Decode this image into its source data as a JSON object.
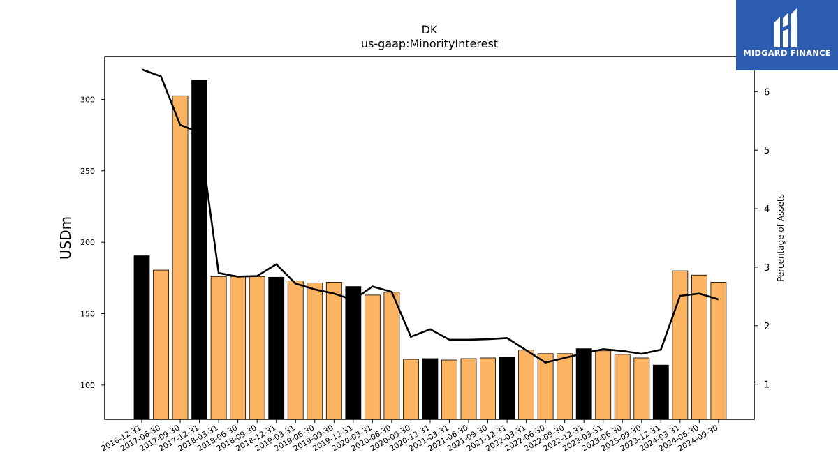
{
  "chart_data": {
    "type": "bar",
    "title": "DK",
    "subtitle": "us-gaap:MinorityInterest",
    "ylabel": "USDm",
    "y2label": "Percentage of Assets",
    "ylim": [
      76,
      330
    ],
    "y2lim": [
      0.4,
      6.6
    ],
    "yticks": [
      100,
      150,
      200,
      250,
      300
    ],
    "y2ticks": [
      1,
      2,
      3,
      4,
      5,
      6
    ],
    "grid": false,
    "categories": [
      "2016-12-31",
      "2017-06-30",
      "2017-09-30",
      "2017-12-31",
      "2018-03-31",
      "2018-06-30",
      "2018-09-30",
      "2018-12-31",
      "2019-03-31",
      "2019-06-30",
      "2019-09-30",
      "2019-12-31",
      "2020-03-31",
      "2020-06-30",
      "2020-09-30",
      "2020-12-31",
      "2021-03-31",
      "2021-06-30",
      "2021-09-30",
      "2021-12-31",
      "2022-03-31",
      "2022-06-30",
      "2022-09-30",
      "2022-12-31",
      "2023-03-31",
      "2023-06-30",
      "2023-09-30",
      "2023-12-31",
      "2024-03-31",
      "2024-06-30",
      "2024-09-30"
    ],
    "values": [
      190.5,
      180.5,
      302.5,
      313.5,
      176,
      176,
      176,
      175.5,
      173,
      171.5,
      172,
      169,
      163,
      165,
      118,
      118.5,
      117.5,
      118.5,
      119,
      119.5,
      124.5,
      122,
      122,
      125.5,
      124,
      121.5,
      119,
      114,
      180,
      177,
      172
    ],
    "bar_colors": [
      "#000000",
      "#fdb462",
      "#fdb462",
      "#000000",
      "#fdb462",
      "#fdb462",
      "#fdb462",
      "#000000",
      "#fdb462",
      "#fdb462",
      "#fdb462",
      "#000000",
      "#fdb462",
      "#fdb462",
      "#fdb462",
      "#000000",
      "#fdb462",
      "#fdb462",
      "#fdb462",
      "#000000",
      "#fdb462",
      "#fdb462",
      "#fdb462",
      "#000000",
      "#fdb462",
      "#fdb462",
      "#fdb462",
      "#000000",
      "#fdb462",
      "#fdb462",
      "#fdb462"
    ],
    "line_values": [
      6.38,
      6.26,
      5.43,
      5.3,
      2.9,
      2.84,
      2.85,
      3.05,
      2.72,
      2.62,
      2.55,
      2.44,
      2.67,
      2.58,
      1.81,
      1.94,
      1.76,
      1.76,
      1.77,
      1.79,
      1.58,
      1.37,
      1.45,
      1.53,
      1.6,
      1.57,
      1.52,
      1.59,
      2.51,
      2.55,
      2.45
    ],
    "line_color": "#000000"
  },
  "logo": {
    "text": "MIDGARD FINANCE",
    "background": "#2c5cb0"
  }
}
